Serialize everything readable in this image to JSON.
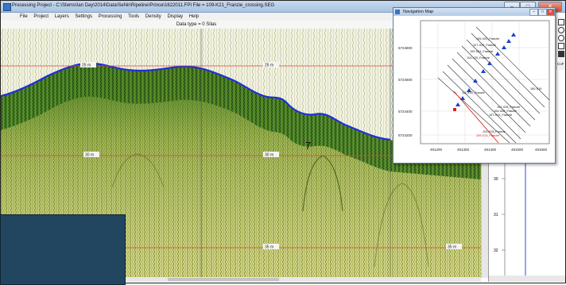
{
  "window": {
    "title": "Processing   Project - C:\\Stems\\Ian Day\\2014\\Data\\SeNir\\Ripeline\\Prince\\1622011.FPI     File = 109-K21_Franzie_crossing.SEG",
    "controls": {
      "minimize": "–",
      "maximize": "□",
      "close": "✕"
    }
  },
  "menu": [
    "File",
    "Project",
    "Layers",
    "Settings",
    "Processing",
    "Tools",
    "Density",
    "Display",
    "Help"
  ],
  "subtitle": "Data type = 0 Silas",
  "seismic": {
    "depth_labels": [
      "25 m",
      "25 m",
      "30 m",
      "30 m",
      "35 m",
      "35 m"
    ],
    "annotation": "7",
    "colors": {
      "reflector": "#1f2fd8",
      "depth_line": "#e04040",
      "signal_dark": "#1a5a1a",
      "signal_light": "#b8c24a"
    }
  },
  "navigation_map": {
    "title": "Navigation Map",
    "y_ticks": [
      "5724800",
      "5724600",
      "5724400",
      "5724200"
    ],
    "x_ticks": [
      "491200",
      "491300",
      "491400",
      "491500",
      "491600"
    ],
    "line_labels": [
      "105-X20_Franzie",
      "107-X20_Franzie",
      "109-X24_Franzie",
      "110-X25_Franzie",
      "111-X25_Franzie",
      "160-X19",
      "102-X28_Franzie",
      "104-X28_Franzie",
      "107-X13_Franzie",
      "110-X13_Franzie",
      "109-X13_Franzie"
    ],
    "side_label": "CoF",
    "colors": {
      "survey_line": "#333333",
      "marker": "#1a3fd0",
      "active_line": "#e02020"
    }
  },
  "side_panel": {
    "ticks": [
      "30",
      "31",
      "32"
    ]
  }
}
